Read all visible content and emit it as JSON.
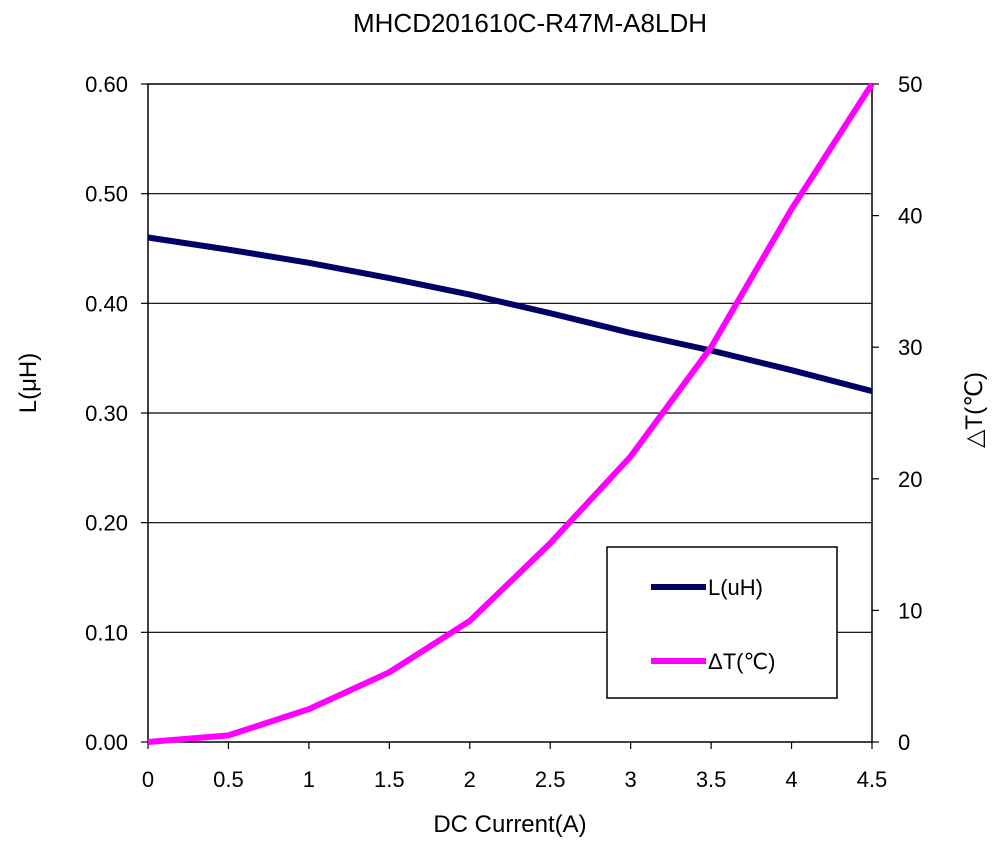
{
  "chart_data": {
    "type": "line",
    "title": "MHCD201610C-R47M-A8LDH",
    "xlabel": "DC Current(A)",
    "ylabel_left": "L(μH)",
    "ylabel_right": "△T(℃)",
    "x": [
      0,
      0.5,
      1,
      1.5,
      2,
      2.5,
      3,
      3.5,
      4,
      4.5
    ],
    "x_tick_labels": [
      "0",
      "0.5",
      "1",
      "1.5",
      "2",
      "2.5",
      "3",
      "3.5",
      "4",
      "4.5"
    ],
    "xlim": [
      0,
      4.5
    ],
    "ylim_left": [
      0,
      0.6
    ],
    "y_left_tick_labels": [
      "0.00",
      "0.10",
      "0.20",
      "0.30",
      "0.40",
      "0.50",
      "0.60"
    ],
    "y_left_ticks": [
      0,
      0.1,
      0.2,
      0.3,
      0.4,
      0.5,
      0.6
    ],
    "ylim_right": [
      0,
      50
    ],
    "y_right_tick_labels": [
      "0",
      "10",
      "20",
      "30",
      "40",
      "50"
    ],
    "y_right_ticks": [
      0,
      10,
      20,
      30,
      40,
      50
    ],
    "grid": "horizontal",
    "legend_position": "bottom-right",
    "series": [
      {
        "name": "L(uH)",
        "axis": "left",
        "color": "#000066",
        "values": [
          0.46,
          0.449,
          0.437,
          0.423,
          0.408,
          0.391,
          0.373,
          0.357,
          0.339,
          0.32
        ]
      },
      {
        "name": "ΔT(℃)",
        "axis": "right",
        "color": "#ff00ff",
        "values": [
          0,
          0.5,
          2.5,
          5.3,
          9.2,
          15.1,
          21.7,
          30,
          40.5,
          50
        ]
      }
    ]
  }
}
